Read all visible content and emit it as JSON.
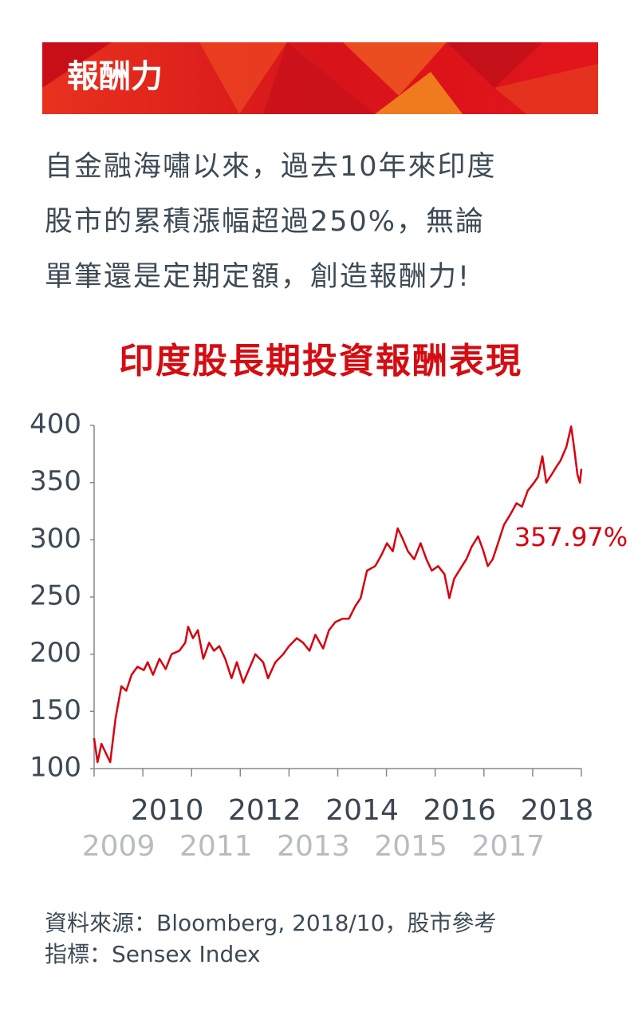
{
  "header": {
    "title": "報酬力"
  },
  "paragraph": [
    "自金融海嘯以來，過去10年來印度",
    "股市的累積漲幅超過250%，無論",
    "單筆還是定期定額，創造報酬力!"
  ],
  "chart_data": {
    "type": "line",
    "title": "印度股長期投資報酬表現",
    "annotation": "357.97%",
    "series": [
      {
        "name": "Sensex Index",
        "color": "#d7000f",
        "x": [
          2009.0,
          2009.07,
          2009.15,
          2009.25,
          2009.33,
          2009.44,
          2009.56,
          2009.66,
          2009.77,
          2009.89,
          2010.02,
          2010.1,
          2010.21,
          2010.34,
          2010.47,
          2010.59,
          2010.75,
          2010.87,
          2010.93,
          2011.03,
          2011.13,
          2011.24,
          2011.36,
          2011.46,
          2011.57,
          2011.69,
          2011.82,
          2011.93,
          2012.06,
          2012.18,
          2012.31,
          2012.47,
          2012.57,
          2012.72,
          2012.88,
          2013.0,
          2013.16,
          2013.29,
          2013.42,
          2013.54,
          2013.7,
          2013.82,
          2013.95,
          2014.1,
          2014.23,
          2014.36,
          2014.47,
          2014.6,
          2014.77,
          2014.9,
          2015.01,
          2015.13,
          2015.23,
          2015.33,
          2015.44,
          2015.57,
          2015.7,
          2015.82,
          2015.93,
          2016.06,
          2016.19,
          2016.29,
          2016.39,
          2016.52,
          2016.64,
          2016.75,
          2016.88,
          2016.99,
          2017.08,
          2017.18,
          2017.29,
          2017.41,
          2017.54,
          2017.67,
          2017.78,
          2017.9,
          2018.03,
          2018.11,
          2018.2,
          2018.28,
          2018.39,
          2018.49,
          2018.57,
          2018.69,
          2018.79,
          2018.85,
          2018.92,
          2018.97,
          2019.0
        ],
        "values": [
          126.5,
          105.6,
          121.6,
          112.6,
          105.6,
          144,
          172,
          168,
          182,
          189,
          186,
          193,
          182,
          196,
          187,
          200,
          203,
          210,
          224,
          214,
          221,
          196,
          210,
          203,
          207,
          196,
          179,
          193,
          175,
          187,
          200,
          193,
          179,
          193,
          200,
          207,
          214,
          210,
          203,
          217,
          205,
          221,
          228,
          231,
          231,
          242,
          249,
          273,
          277,
          287,
          297,
          290,
          310,
          301,
          290,
          283,
          297,
          283,
          273,
          277,
          270,
          249,
          266,
          275,
          283,
          294,
          303,
          290,
          277,
          283,
          297,
          313,
          322,
          332,
          329,
          343,
          350,
          355,
          373,
          350,
          357,
          364,
          369,
          381,
          399,
          381,
          357,
          350,
          362
        ]
      }
    ],
    "xlim": [
      2009,
      2019
    ],
    "xminorticks": [
      2009,
      2010,
      2011,
      2012,
      2013,
      2014,
      2015,
      2016,
      2017,
      2018,
      2019
    ],
    "xticks": [
      {
        "value": 2009.5,
        "label": "2009"
      },
      {
        "value": 2010.5,
        "label": "2010"
      },
      {
        "value": 2011.5,
        "label": "2011"
      },
      {
        "value": 2012.5,
        "label": "2012"
      },
      {
        "value": 2013.5,
        "label": "2013"
      },
      {
        "value": 2014.5,
        "label": "2014"
      },
      {
        "value": 2015.5,
        "label": "2015"
      },
      {
        "value": 2016.5,
        "label": "2016"
      },
      {
        "value": 2017.5,
        "label": "2017"
      },
      {
        "value": 2018.5,
        "label": "2018"
      }
    ],
    "ylim": [
      100,
      400
    ],
    "yticks": [
      100,
      150,
      200,
      250,
      300,
      350,
      400
    ]
  },
  "source": [
    "資料來源：Bloomberg,  2018/10，股市參考",
    "指標：Sensex Index"
  ]
}
